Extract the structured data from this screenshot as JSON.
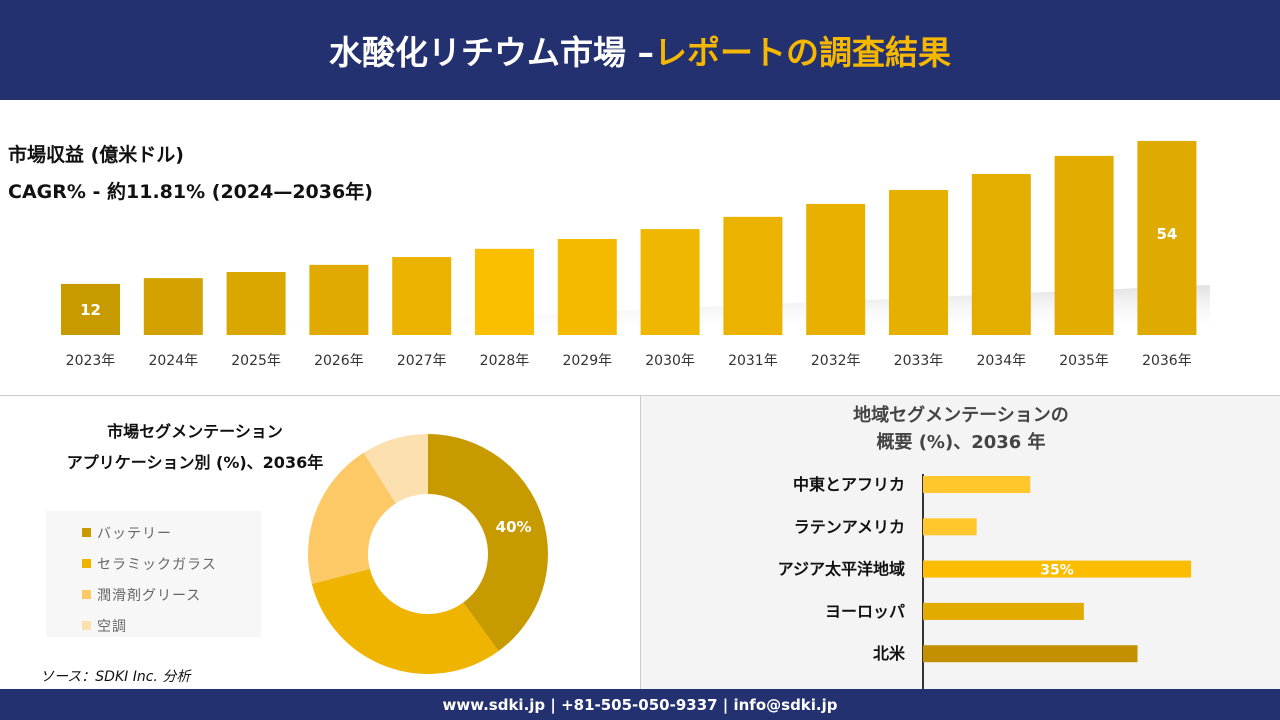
{
  "header": {
    "title_main": "水酸化リチウム市場 –",
    "title_accent": "レポートの調査結果"
  },
  "colors": {
    "header_bg": "#243170",
    "accent": "#f6b700"
  },
  "chart_data": [
    {
      "type": "bar",
      "title": "市場収益 (億米ドル)",
      "subtitle": "CAGR% - 約11.81% (2024—2036年)",
      "categories": [
        "2023年",
        "2024年",
        "2025年",
        "2026年",
        "2027年",
        "2028年",
        "2029年",
        "2030年",
        "2031年",
        "2032年",
        "2033年",
        "2034年",
        "2035年",
        "2036年"
      ],
      "values": [
        12,
        13.7,
        15.5,
        17.6,
        19.9,
        22.3,
        25.2,
        28.1,
        31.7,
        35.5,
        39.6,
        44.3,
        49.6,
        54
      ],
      "data_labels": {
        "0": "12",
        "13": "54"
      },
      "colors": [
        "#c79a00",
        "#d4a200",
        "#daa600",
        "#e0aa00",
        "#ebb300",
        "#fbbf00",
        "#f4ba00",
        "#efb700",
        "#ebb300",
        "#e8b100",
        "#e6b000",
        "#e4ae00",
        "#e2ad00",
        "#e0ab00"
      ]
    },
    {
      "type": "pie",
      "donut": true,
      "title": "市場セグメンテーション",
      "subtitle": "アプリケーション別 (%)、2036年",
      "labels": [
        "バッテリー",
        "セラミックガラス",
        "潤滑剤グリース",
        "空調"
      ],
      "values": [
        40,
        31,
        20,
        9
      ],
      "data_labels": {
        "0": "40%"
      },
      "colors": [
        "#c79a00",
        "#efb400",
        "#fdc866",
        "#fde0b0"
      ]
    },
    {
      "type": "bar",
      "orientation": "horizontal",
      "title": "地域セグメンテーションの",
      "subtitle": "概要 (%)、2036 年",
      "categories": [
        "中東とアフリカ",
        "ラテンアメリカ",
        "アジア太平洋地域",
        "ヨーロッパ",
        "北米"
      ],
      "values": [
        14,
        7,
        35,
        21,
        28
      ],
      "data_labels": {
        "2": "35%"
      },
      "colors": [
        "#ffc72c",
        "#ffc72c",
        "#fcbc00",
        "#e2ab00",
        "#c29000"
      ]
    }
  ],
  "source": "ソース：SDKI Inc. 分析",
  "footer": "www.sdki.jp | +81-505-050-9337 | info@sdki.jp"
}
